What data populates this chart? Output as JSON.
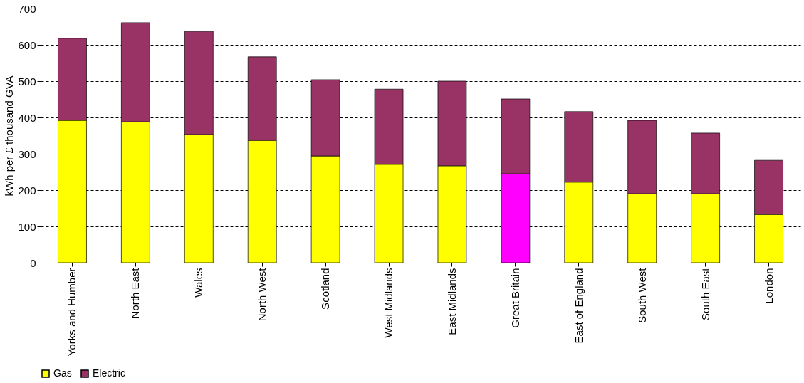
{
  "chart_data": {
    "type": "bar",
    "stacked": true,
    "ylabel": "kWh per £ thousand GVA",
    "categories": [
      "Yorks and Humber",
      "North East",
      "Wales",
      "North West",
      "Scotland",
      "West Midlands",
      "East Midlands",
      "Great Britain",
      "East of England",
      "South West",
      "South East",
      "London"
    ],
    "series": [
      {
        "name": "Gas",
        "color": "#ffff00",
        "colors": [
          "#ffff00",
          "#ffff00",
          "#ffff00",
          "#ffff00",
          "#ffff00",
          "#ffff00",
          "#ffff00",
          "#ff00ff",
          "#ffff00",
          "#ffff00",
          "#ffff00",
          "#ffff00"
        ],
        "values": [
          392,
          388,
          353,
          337,
          294,
          271,
          267,
          245,
          222,
          190,
          190,
          133
        ]
      },
      {
        "name": "Electric",
        "color": "#993366",
        "values": [
          226,
          273,
          284,
          230,
          210,
          207,
          233,
          206,
          194,
          202,
          167,
          149
        ]
      }
    ],
    "ylim": [
      0,
      700
    ],
    "yticks": [
      0,
      100,
      200,
      300,
      400,
      500,
      600,
      700
    ],
    "grid": "y",
    "legend": "bottom"
  }
}
